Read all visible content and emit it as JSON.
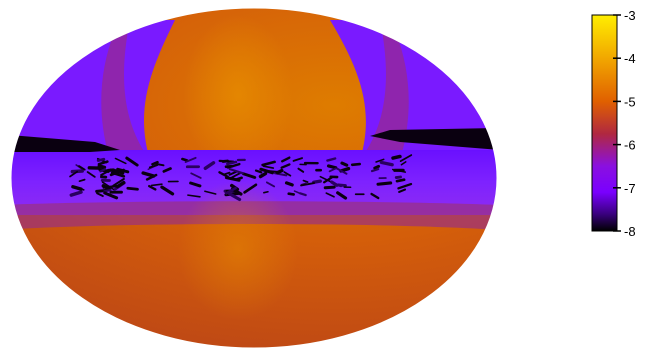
{
  "chart_data": {
    "type": "heatmap",
    "projection": "elliptical all-sky map",
    "title": "",
    "xlabel": "",
    "ylabel": "",
    "colorbar": {
      "min": -8,
      "max": -3,
      "ticks": [
        -3,
        -4,
        -5,
        -6,
        -7,
        -8
      ],
      "tick_labels": [
        "-3",
        "-4",
        "-5",
        "-6",
        "-7",
        "-8"
      ],
      "colormap": [
        "#000000",
        "#7a00ff",
        "#c03020",
        "#e07000",
        "#ffe000"
      ],
      "placement": "right"
    },
    "regions": [
      {
        "name": "upper lobe",
        "value": -4.2
      },
      {
        "name": "lower lobe",
        "value": -4.4
      },
      {
        "name": "equatorial band",
        "value": -6.5
      },
      {
        "name": "band dark streaks",
        "value": -8
      }
    ]
  },
  "colors": {
    "background": "#ffffff",
    "lobe_center": "#dd7a00",
    "lobe_edge": "#c04a14",
    "band": "#7a1aff",
    "dark": "#0a0010"
  }
}
